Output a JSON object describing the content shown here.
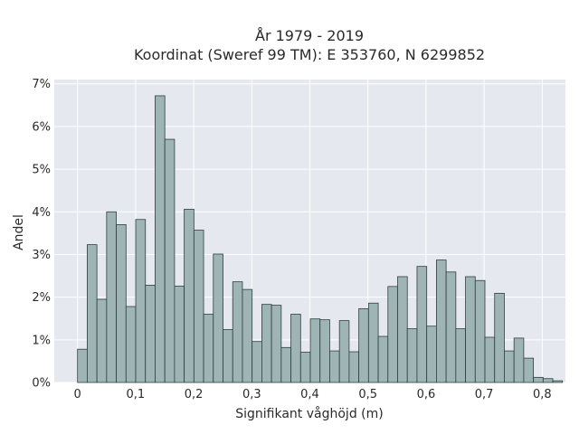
{
  "chart_data": {
    "type": "bar",
    "title_lines": [
      "År 1979 - 2019",
      "Koordinat (Sweref 99 TM): E 353760, N 6299852"
    ],
    "xlabel": "Signifikant våghöjd (m)",
    "ylabel": "Andel",
    "x_ticks": [
      0,
      0.1,
      0.2,
      0.3,
      0.4,
      0.5,
      0.6,
      0.7,
      0.8
    ],
    "x_tick_labels": [
      "0",
      "0,1",
      "0,2",
      "0,3",
      "0,4",
      "0,5",
      "0,6",
      "0,7",
      "0,8"
    ],
    "y_ticks": [
      0,
      1,
      2,
      3,
      4,
      5,
      6,
      7
    ],
    "y_tick_labels": [
      "0%",
      "1%",
      "2%",
      "3%",
      "4%",
      "5%",
      "6%",
      "7%"
    ],
    "xlim": [
      -0.04,
      0.84
    ],
    "ylim": [
      0,
      7.1
    ],
    "bin_width": 0.0167,
    "bin_start": 0,
    "values": [
      0.78,
      3.23,
      1.95,
      4.0,
      3.7,
      1.78,
      3.82,
      2.28,
      6.72,
      5.7,
      2.26,
      4.06,
      3.57,
      1.6,
      3.01,
      1.24,
      2.36,
      2.18,
      0.96,
      1.83,
      1.81,
      0.82,
      1.6,
      0.71,
      1.49,
      1.47,
      0.74,
      1.45,
      0.72,
      1.73,
      1.86,
      1.08,
      2.25,
      2.48,
      1.26,
      2.72,
      1.32,
      2.87,
      2.59,
      1.26,
      2.48,
      2.39,
      1.06,
      2.09,
      0.74,
      1.04,
      0.57,
      0.12,
      0.09,
      0.04
    ],
    "grid": true,
    "colors": {
      "plot_background": "#e6e8f0",
      "bar_fill": "#9fb5b5",
      "bar_edge": "#2e3f3f",
      "grid": "#ffffff"
    }
  }
}
